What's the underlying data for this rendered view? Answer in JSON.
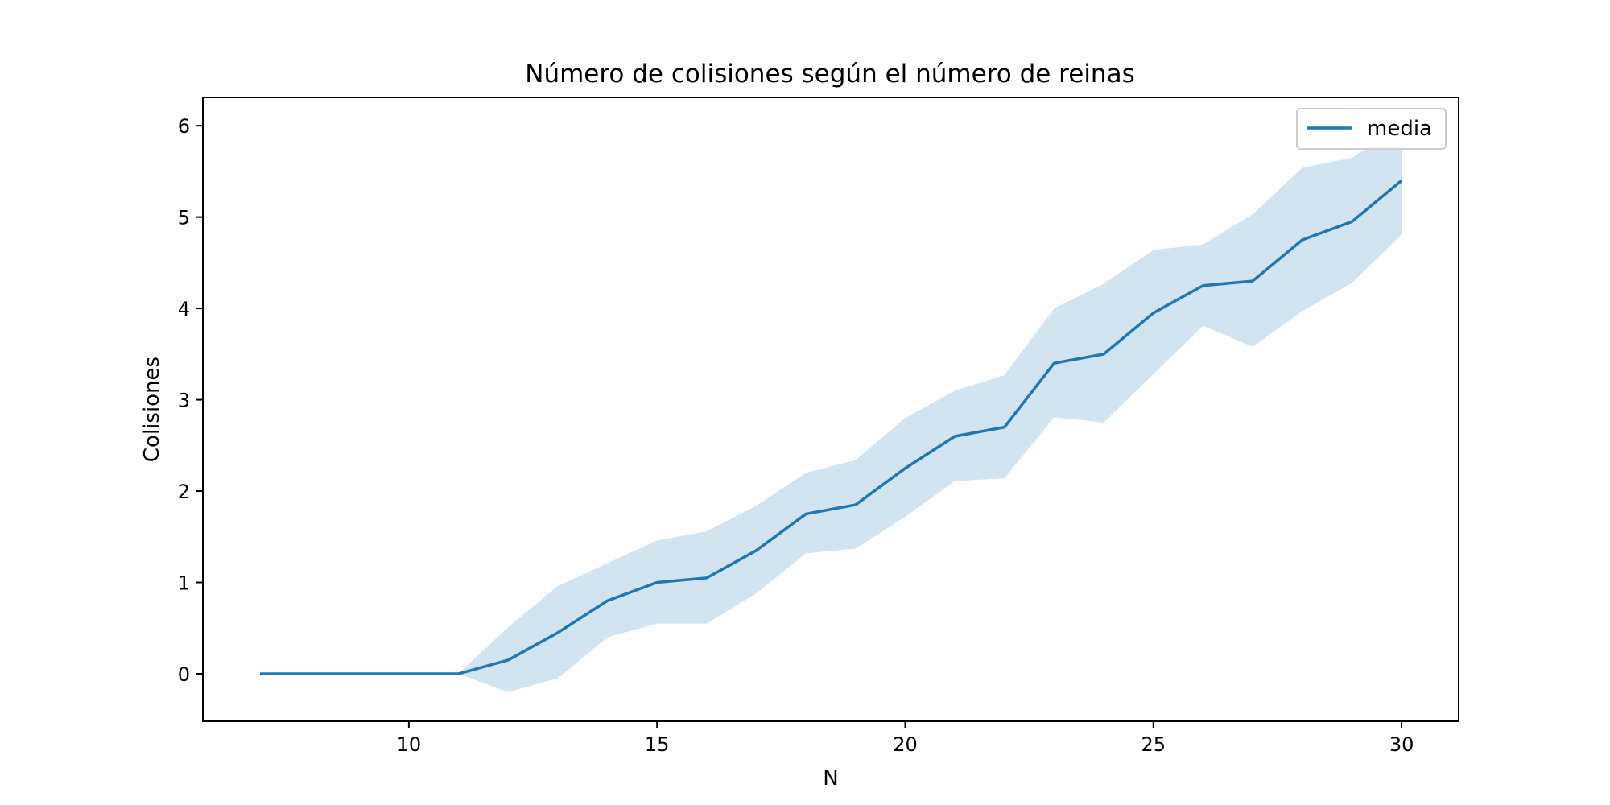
{
  "chart_data": {
    "type": "line",
    "title": "Número de colisiones según el número de reinas",
    "xlabel": "N",
    "ylabel": "Colisiones",
    "xlim": [
      5.85,
      31.15
    ],
    "ylim": [
      -0.52,
      6.31
    ],
    "xticks": [
      10,
      15,
      20,
      25,
      30
    ],
    "yticks": [
      0,
      1,
      2,
      3,
      4,
      5,
      6
    ],
    "grid": false,
    "legend_position": "top-right",
    "colors": {
      "line": "#1f77b4",
      "band": "#1f77b4"
    },
    "series": [
      {
        "name": "media",
        "x": [
          7,
          8,
          9,
          10,
          11,
          12,
          13,
          14,
          15,
          16,
          17,
          18,
          19,
          20,
          21,
          22,
          23,
          24,
          25,
          26,
          27,
          28,
          29,
          30
        ],
        "values": [
          0,
          0,
          0,
          0,
          0,
          0.15,
          0.45,
          0.8,
          1.0,
          1.05,
          1.35,
          1.75,
          1.85,
          2.25,
          2.6,
          2.7,
          3.4,
          3.5,
          3.95,
          4.25,
          4.3,
          4.75,
          4.95,
          5.4
        ],
        "lower": [
          0,
          0,
          0,
          0,
          0,
          -0.2,
          -0.05,
          0.4,
          0.55,
          0.55,
          0.88,
          1.32,
          1.37,
          1.72,
          2.11,
          2.14,
          2.81,
          2.75,
          3.28,
          3.81,
          3.58,
          3.97,
          4.28,
          4.81
        ],
        "upper": [
          0,
          0,
          0,
          0,
          0,
          0.51,
          0.96,
          1.21,
          1.46,
          1.56,
          1.84,
          2.2,
          2.34,
          2.8,
          3.1,
          3.27,
          4.0,
          4.27,
          4.64,
          4.7,
          5.03,
          5.54,
          5.65,
          6.0
        ]
      }
    ]
  }
}
